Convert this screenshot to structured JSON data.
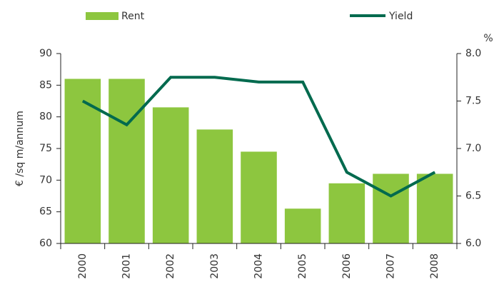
{
  "chart_data": {
    "type": "bar",
    "categories": [
      "2000",
      "2001",
      "2002",
      "2003",
      "2004",
      "2005",
      "2006",
      "2007",
      "2008"
    ],
    "series": [
      {
        "name": "Rent",
        "type": "bar",
        "color": "#8dc63f",
        "values": [
          86,
          86,
          81.5,
          78,
          74.5,
          65.5,
          69.5,
          71,
          71
        ]
      },
      {
        "name": "Yield",
        "type": "line",
        "axis": "y2",
        "color": "#006a4e",
        "values": [
          7.5,
          7.25,
          7.75,
          7.75,
          7.7,
          7.7,
          6.75,
          6.5,
          6.75
        ]
      }
    ],
    "ylabel": "€ /sq m/annum",
    "y2label": "%",
    "ylim": [
      60,
      90
    ],
    "yticks": [
      60,
      65,
      70,
      75,
      80,
      85,
      90
    ],
    "y2lim": [
      6,
      8
    ],
    "y2ticks": [
      {
        "value": 6,
        "label": "6.0"
      },
      {
        "value": 6.5,
        "label": "6.5"
      },
      {
        "value": 7,
        "label": "7.0"
      },
      {
        "value": 7.5,
        "label": "7.5"
      },
      {
        "value": 8,
        "label": "8.0"
      }
    ],
    "grid": false
  }
}
